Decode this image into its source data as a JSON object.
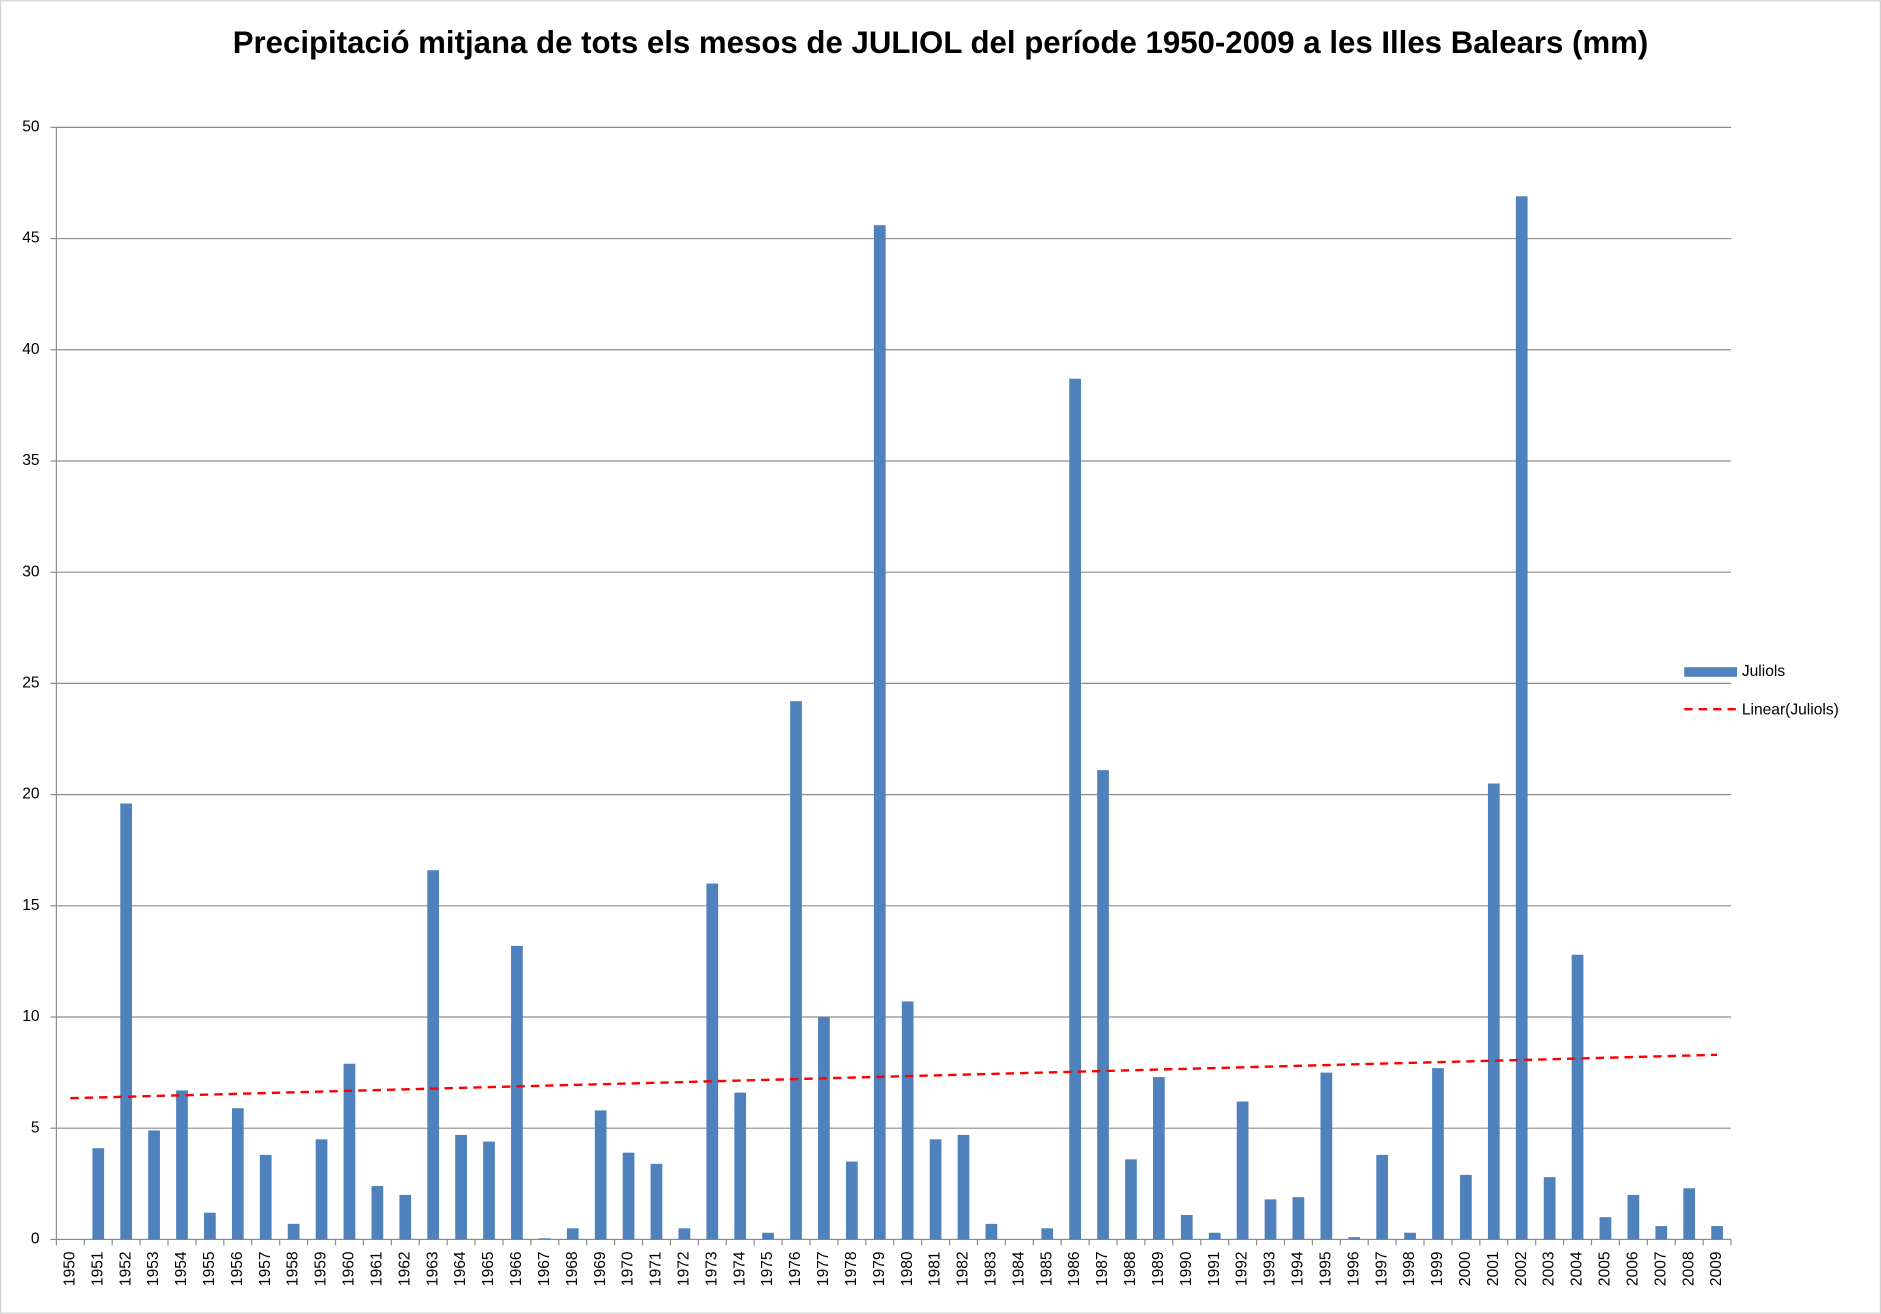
{
  "chart_data": {
    "type": "bar",
    "title": "Precipitació mitjana de tots els mesos de JULIOL del període 1950-2009 a les Illes Balears (mm)",
    "categories": [
      "1950",
      "1951",
      "1952",
      "1953",
      "1954",
      "1955",
      "1956",
      "1957",
      "1958",
      "1959",
      "1960",
      "1961",
      "1962",
      "1963",
      "1964",
      "1965",
      "1966",
      "1967",
      "1968",
      "1969",
      "1970",
      "1971",
      "1972",
      "1973",
      "1974",
      "1975",
      "1976",
      "1977",
      "1978",
      "1979",
      "1980",
      "1981",
      "1982",
      "1983",
      "1984",
      "1985",
      "1986",
      "1987",
      "1988",
      "1989",
      "1990",
      "1991",
      "1992",
      "1993",
      "1994",
      "1995",
      "1996",
      "1997",
      "1998",
      "1999",
      "2000",
      "2001",
      "2002",
      "2003",
      "2004",
      "2005",
      "2006",
      "2007",
      "2008",
      "2009"
    ],
    "series": [
      {
        "name": "Juliols",
        "color": "#4f81bd",
        "values": [
          0,
          4.1,
          19.6,
          4.9,
          6.7,
          1.2,
          5.9,
          3.8,
          0.7,
          4.5,
          7.9,
          2.4,
          2.0,
          16.6,
          4.7,
          4.4,
          13.2,
          0.05,
          0.5,
          5.8,
          3.9,
          3.4,
          0.5,
          16.0,
          6.6,
          0.3,
          24.2,
          10.0,
          3.5,
          45.6,
          10.7,
          4.5,
          4.7,
          0.7,
          0,
          0.5,
          38.7,
          21.1,
          3.6,
          7.3,
          1.1,
          0.3,
          6.2,
          1.8,
          1.9,
          7.5,
          0.1,
          3.8,
          0.3,
          7.7,
          2.9,
          20.5,
          46.9,
          2.8,
          12.8,
          1.0,
          2.0,
          0.6,
          2.3,
          0.6
        ]
      }
    ],
    "trendline": {
      "name": "Linear(Juliols)",
      "color": "#ff0000",
      "x": [
        "1950",
        "2009"
      ],
      "values": [
        6.35,
        8.3
      ]
    },
    "ylim": [
      0,
      50
    ],
    "yticks": [
      0,
      5,
      10,
      15,
      20,
      25,
      30,
      35,
      40,
      45,
      50
    ],
    "grid": true,
    "legend": "right"
  }
}
